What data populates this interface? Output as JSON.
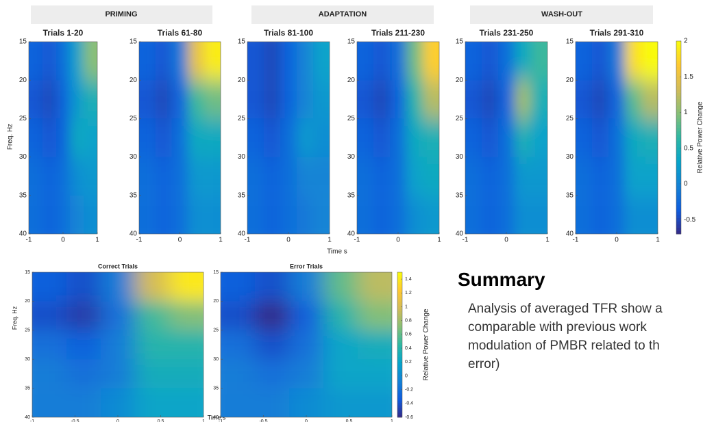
{
  "headers": [
    "PRIMING",
    "ADAPTATION",
    "WASH-OUT"
  ],
  "top": {
    "ylabel": "Freq. Hz",
    "xlabel": "Time s",
    "colorbar": {
      "label": "Relative Power Change",
      "clim": [
        -0.7,
        2
      ],
      "ticks": [
        -0.5,
        0,
        0.5,
        1,
        1.5,
        2
      ]
    }
  },
  "bottom": {
    "ylabel": "Freq. Hz",
    "xlabel": "Time s",
    "colorbar": {
      "label": "Relative Power Change",
      "clim": [
        -0.6,
        1.5
      ],
      "ticks": [
        -0.6,
        -0.4,
        -0.2,
        0,
        0.2,
        0.4,
        0.6,
        0.8,
        1,
        1.2,
        1.4
      ]
    }
  },
  "chart_data": [
    {
      "type": "heatmap",
      "title": "Trials 1-20",
      "xlim": [
        -1,
        1
      ],
      "xticks": [
        -1,
        0,
        1
      ],
      "ylim": [
        40,
        15
      ],
      "yticks": [
        15,
        20,
        25,
        30,
        35,
        40
      ],
      "x": [
        -0.8,
        -0.4,
        0,
        0.4,
        0.8
      ],
      "y": [
        17.5,
        22.5,
        27.5,
        32.5,
        37.5
      ],
      "z": [
        [
          -0.3,
          -0.4,
          -0.2,
          0.3,
          1.0
        ],
        [
          -0.4,
          -0.5,
          -0.3,
          0.2,
          0.5
        ],
        [
          -0.3,
          -0.4,
          -0.3,
          0.4,
          0.3
        ],
        [
          -0.2,
          -0.3,
          -0.2,
          0.1,
          0.2
        ],
        [
          -0.2,
          -0.3,
          -0.2,
          0.0,
          0.1
        ]
      ]
    },
    {
      "type": "heatmap",
      "title": "Trials 61-80",
      "xlim": [
        -1,
        1
      ],
      "xticks": [
        -1,
        0,
        1
      ],
      "ylim": [
        40,
        15
      ],
      "yticks": [
        15,
        20,
        25,
        30,
        35,
        40
      ],
      "x": [
        -0.8,
        -0.4,
        0,
        0.4,
        0.8
      ],
      "y": [
        17.5,
        22.5,
        27.5,
        32.5,
        37.5
      ],
      "z": [
        [
          -0.3,
          -0.4,
          -0.1,
          1.5,
          1.9
        ],
        [
          -0.4,
          -0.5,
          -0.3,
          0.7,
          0.9
        ],
        [
          -0.3,
          -0.4,
          -0.2,
          0.4,
          0.4
        ],
        [
          -0.2,
          -0.3,
          -0.2,
          0.2,
          0.2
        ],
        [
          -0.2,
          -0.3,
          -0.2,
          0.1,
          0.1
        ]
      ]
    },
    {
      "type": "heatmap",
      "title": "Trials 81-100",
      "xlim": [
        -1,
        1
      ],
      "xticks": [
        -1,
        0,
        1
      ],
      "ylim": [
        40,
        15
      ],
      "yticks": [
        15,
        20,
        25,
        30,
        35,
        40
      ],
      "x": [
        -0.8,
        -0.4,
        0,
        0.4,
        0.8
      ],
      "y": [
        17.5,
        22.5,
        27.5,
        32.5,
        37.5
      ],
      "z": [
        [
          -0.4,
          -0.5,
          -0.3,
          0.0,
          0.3
        ],
        [
          -0.4,
          -0.5,
          -0.3,
          0.0,
          0.2
        ],
        [
          -0.3,
          -0.4,
          -0.2,
          0.2,
          0.1
        ],
        [
          -0.2,
          -0.3,
          -0.2,
          0.0,
          0.0
        ],
        [
          -0.2,
          -0.3,
          -0.2,
          -0.1,
          0.0
        ]
      ]
    },
    {
      "type": "heatmap",
      "title": "Trials 211-230",
      "xlim": [
        -1,
        1
      ],
      "xticks": [
        -1,
        0,
        1
      ],
      "ylim": [
        40,
        15
      ],
      "yticks": [
        15,
        20,
        25,
        30,
        35,
        40
      ],
      "x": [
        -0.8,
        -0.4,
        0,
        0.4,
        0.8
      ],
      "y": [
        17.5,
        22.5,
        27.5,
        32.5,
        37.5
      ],
      "z": [
        [
          -0.3,
          -0.4,
          -0.2,
          0.9,
          1.7
        ],
        [
          -0.4,
          -0.5,
          -0.3,
          0.6,
          1.2
        ],
        [
          -0.3,
          -0.4,
          -0.2,
          0.4,
          0.5
        ],
        [
          -0.2,
          -0.3,
          -0.2,
          0.3,
          0.4
        ],
        [
          -0.2,
          -0.3,
          -0.2,
          0.1,
          0.2
        ]
      ]
    },
    {
      "type": "heatmap",
      "title": "Trials 231-250",
      "xlim": [
        -1,
        1
      ],
      "xticks": [
        -1,
        0,
        1
      ],
      "ylim": [
        40,
        15
      ],
      "yticks": [
        15,
        20,
        25,
        30,
        35,
        40
      ],
      "x": [
        -0.8,
        -0.4,
        0,
        0.4,
        0.8
      ],
      "y": [
        17.5,
        22.5,
        27.5,
        32.5,
        37.5
      ],
      "z": [
        [
          -0.3,
          -0.4,
          -0.2,
          0.4,
          0.7
        ],
        [
          -0.4,
          -0.5,
          -0.3,
          1.1,
          0.5
        ],
        [
          -0.3,
          -0.4,
          -0.2,
          0.5,
          0.3
        ],
        [
          -0.2,
          -0.3,
          -0.2,
          0.2,
          0.2
        ],
        [
          -0.2,
          -0.3,
          -0.2,
          0.1,
          0.1
        ]
      ]
    },
    {
      "type": "heatmap",
      "title": "Trials 291-310",
      "xlim": [
        -1,
        1
      ],
      "xticks": [
        -1,
        0,
        1
      ],
      "ylim": [
        40,
        15
      ],
      "yticks": [
        15,
        20,
        25,
        30,
        35,
        40
      ],
      "x": [
        -0.8,
        -0.4,
        0,
        0.4,
        0.8
      ],
      "y": [
        17.5,
        22.5,
        27.5,
        32.5,
        37.5
      ],
      "z": [
        [
          -0.3,
          -0.4,
          -0.1,
          1.8,
          2.0
        ],
        [
          -0.4,
          -0.5,
          -0.3,
          0.8,
          1.2
        ],
        [
          -0.3,
          -0.4,
          -0.2,
          0.4,
          0.5
        ],
        [
          -0.2,
          -0.3,
          -0.2,
          0.3,
          0.3
        ],
        [
          -0.2,
          -0.3,
          -0.2,
          0.1,
          0.1
        ]
      ]
    },
    {
      "type": "heatmap",
      "title": "Correct Trials",
      "xlim": [
        -1,
        1
      ],
      "xticks": [
        -1,
        -0.5,
        0,
        0.5,
        1
      ],
      "ylim": [
        40,
        15
      ],
      "yticks": [
        15,
        20,
        25,
        30,
        35,
        40
      ],
      "x": [
        -0.8,
        -0.4,
        0,
        0.4,
        0.8
      ],
      "y": [
        17.5,
        22.5,
        27.5,
        32.5,
        37.5
      ],
      "z": [
        [
          -0.3,
          -0.4,
          -0.1,
          1.0,
          1.4
        ],
        [
          -0.4,
          -0.5,
          -0.2,
          0.5,
          0.7
        ],
        [
          -0.2,
          -0.3,
          -0.1,
          0.4,
          0.4
        ],
        [
          -0.1,
          -0.2,
          -0.1,
          0.3,
          0.3
        ],
        [
          -0.1,
          -0.1,
          0.0,
          0.2,
          0.2
        ]
      ]
    },
    {
      "type": "heatmap",
      "title": "Error Trials",
      "xlim": [
        -1,
        1
      ],
      "xticks": [
        -1,
        -0.5,
        0,
        0.5,
        1
      ],
      "ylim": [
        40,
        15
      ],
      "yticks": [
        15,
        20,
        25,
        30,
        35,
        40
      ],
      "x": [
        -0.8,
        -0.4,
        0,
        0.4,
        0.8
      ],
      "y": [
        17.5,
        22.5,
        27.5,
        32.5,
        37.5
      ],
      "z": [
        [
          -0.3,
          -0.4,
          -0.1,
          0.6,
          0.9
        ],
        [
          -0.4,
          -0.6,
          -0.3,
          0.4,
          0.7
        ],
        [
          -0.2,
          -0.4,
          -0.2,
          0.2,
          0.3
        ],
        [
          -0.1,
          -0.2,
          -0.1,
          0.2,
          0.2
        ],
        [
          -0.1,
          -0.1,
          0.0,
          0.1,
          0.1
        ]
      ]
    }
  ],
  "summary": {
    "title": "Summary",
    "lines": [
      "Analysis of averaged TFR show a",
      "comparable with previous work",
      "modulation of PMBR related to th",
      "error)"
    ]
  }
}
